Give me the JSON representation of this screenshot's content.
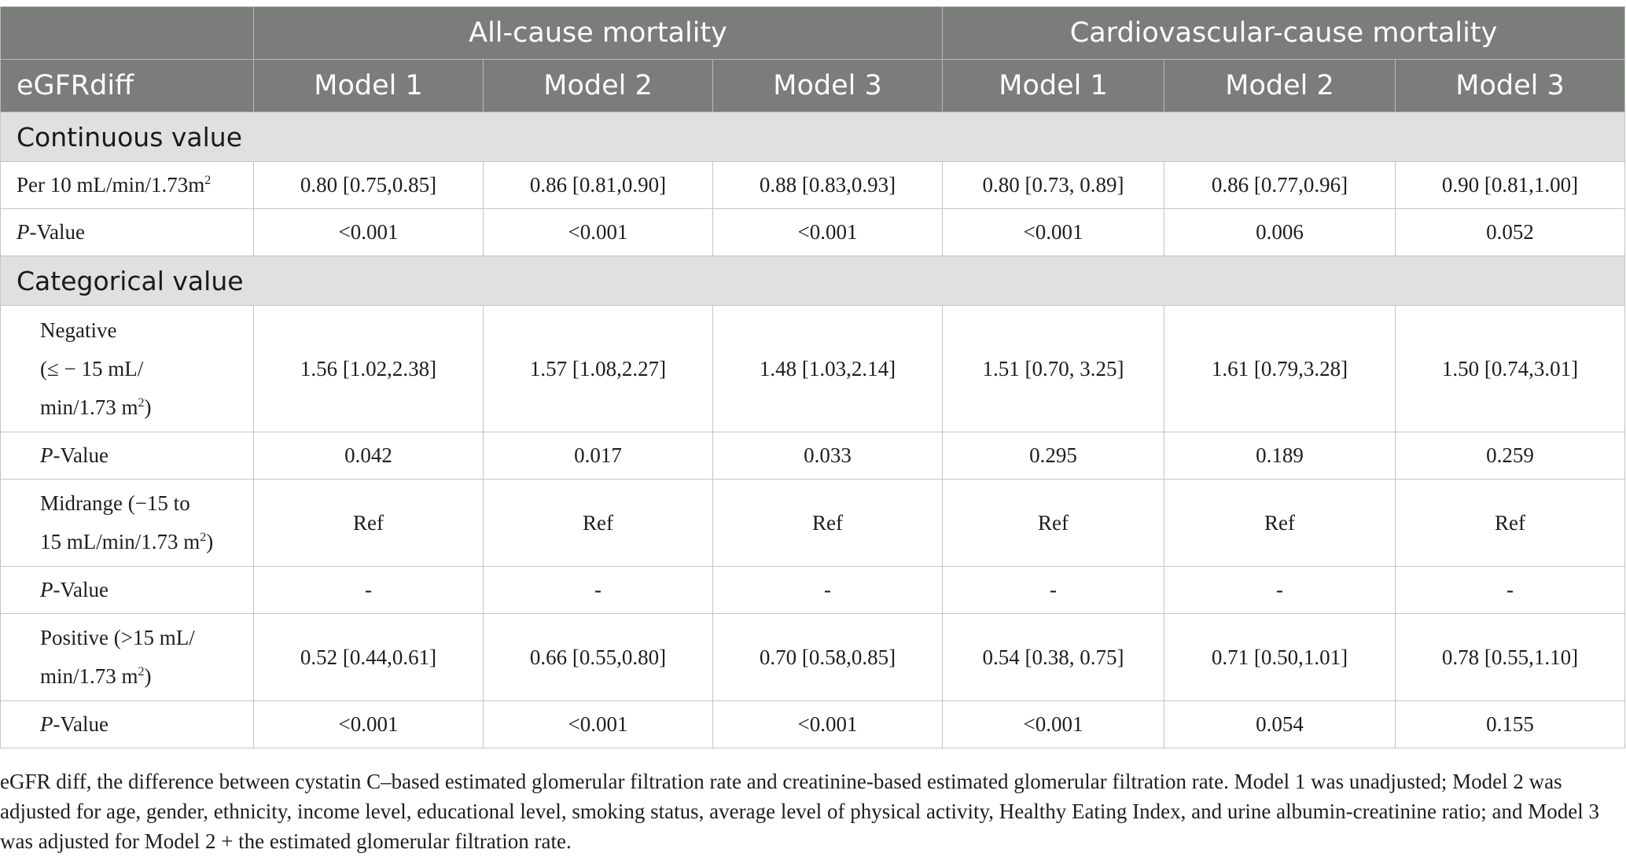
{
  "header": {
    "group_all": "All-cause mortality",
    "group_cv": "Cardiovascular-cause mortality",
    "first_col": "eGFRdiff",
    "models": [
      "Model 1",
      "Model 2",
      "Model 3",
      "Model 1",
      "Model 2",
      "Model 3"
    ]
  },
  "sections": {
    "continuous": "Continuous value",
    "categorical": "Categorical value"
  },
  "rows": {
    "per10": {
      "label": "Per 10 mL/min/1.73m",
      "sup": "2",
      "values": [
        "0.80 [0.75,0.85]",
        "0.86 [0.81,0.90]",
        "0.88 [0.83,0.93]",
        "0.80 [0.73, 0.89]",
        "0.86 [0.77,0.96]",
        "0.90 [0.81,1.00]"
      ]
    },
    "p1": {
      "label_i": "P",
      "label": "-Value",
      "values": [
        "<0.001",
        "<0.001",
        "<0.001",
        "<0.001",
        "0.006",
        "0.052"
      ]
    },
    "negative": {
      "line1": "Negative",
      "line2": "(≤ − 15 mL/",
      "line3": "min/1.73 m",
      "sup": "2",
      "line3_end": ")",
      "values": [
        "1.56 [1.02,2.38]",
        "1.57 [1.08,2.27]",
        "1.48 [1.03,2.14]",
        "1.51 [0.70, 3.25]",
        "1.61 [0.79,3.28]",
        "1.50 [0.74,3.01]"
      ]
    },
    "p2": {
      "label_i": "P",
      "label": "-Value",
      "values": [
        "0.042",
        "0.017",
        "0.033",
        "0.295",
        "0.189",
        "0.259"
      ]
    },
    "midrange": {
      "line1": "Midrange (−15 to",
      "line2": "15 mL/min/1.73 m",
      "sup": "2",
      "line2_end": ")",
      "values": [
        "Ref",
        "Ref",
        "Ref",
        "Ref",
        "Ref",
        "Ref"
      ]
    },
    "p3": {
      "label_i": "P",
      "label": "-Value",
      "values": [
        "-",
        "-",
        "-",
        "-",
        "-",
        "-"
      ]
    },
    "positive": {
      "line1": "Positive (>15 mL/",
      "line2": "min/1.73 m",
      "sup": "2",
      "line2_end": ")",
      "values": [
        "0.52 [0.44,0.61]",
        "0.66 [0.55,0.80]",
        "0.70 [0.58,0.85]",
        "0.54 [0.38, 0.75]",
        "0.71 [0.50,1.01]",
        "0.78 [0.55,1.10]"
      ]
    },
    "p4": {
      "label_i": "P",
      "label": "-Value",
      "values": [
        "<0.001",
        "<0.001",
        "<0.001",
        "<0.001",
        "0.054",
        "0.155"
      ]
    }
  },
  "footnote": "eGFR diff, the difference between cystatin C–based estimated glomerular filtration rate and creatinine-based estimated glomerular filtration rate. Model 1 was unadjusted; Model 2 was adjusted for age, gender, ethnicity, income level, educational level, smoking status, average level of physical activity, Healthy Eating Index, and urine albumin-creatinine ratio; and Model 3 was adjusted for Model 2 + the estimated glomerular filtration rate."
}
